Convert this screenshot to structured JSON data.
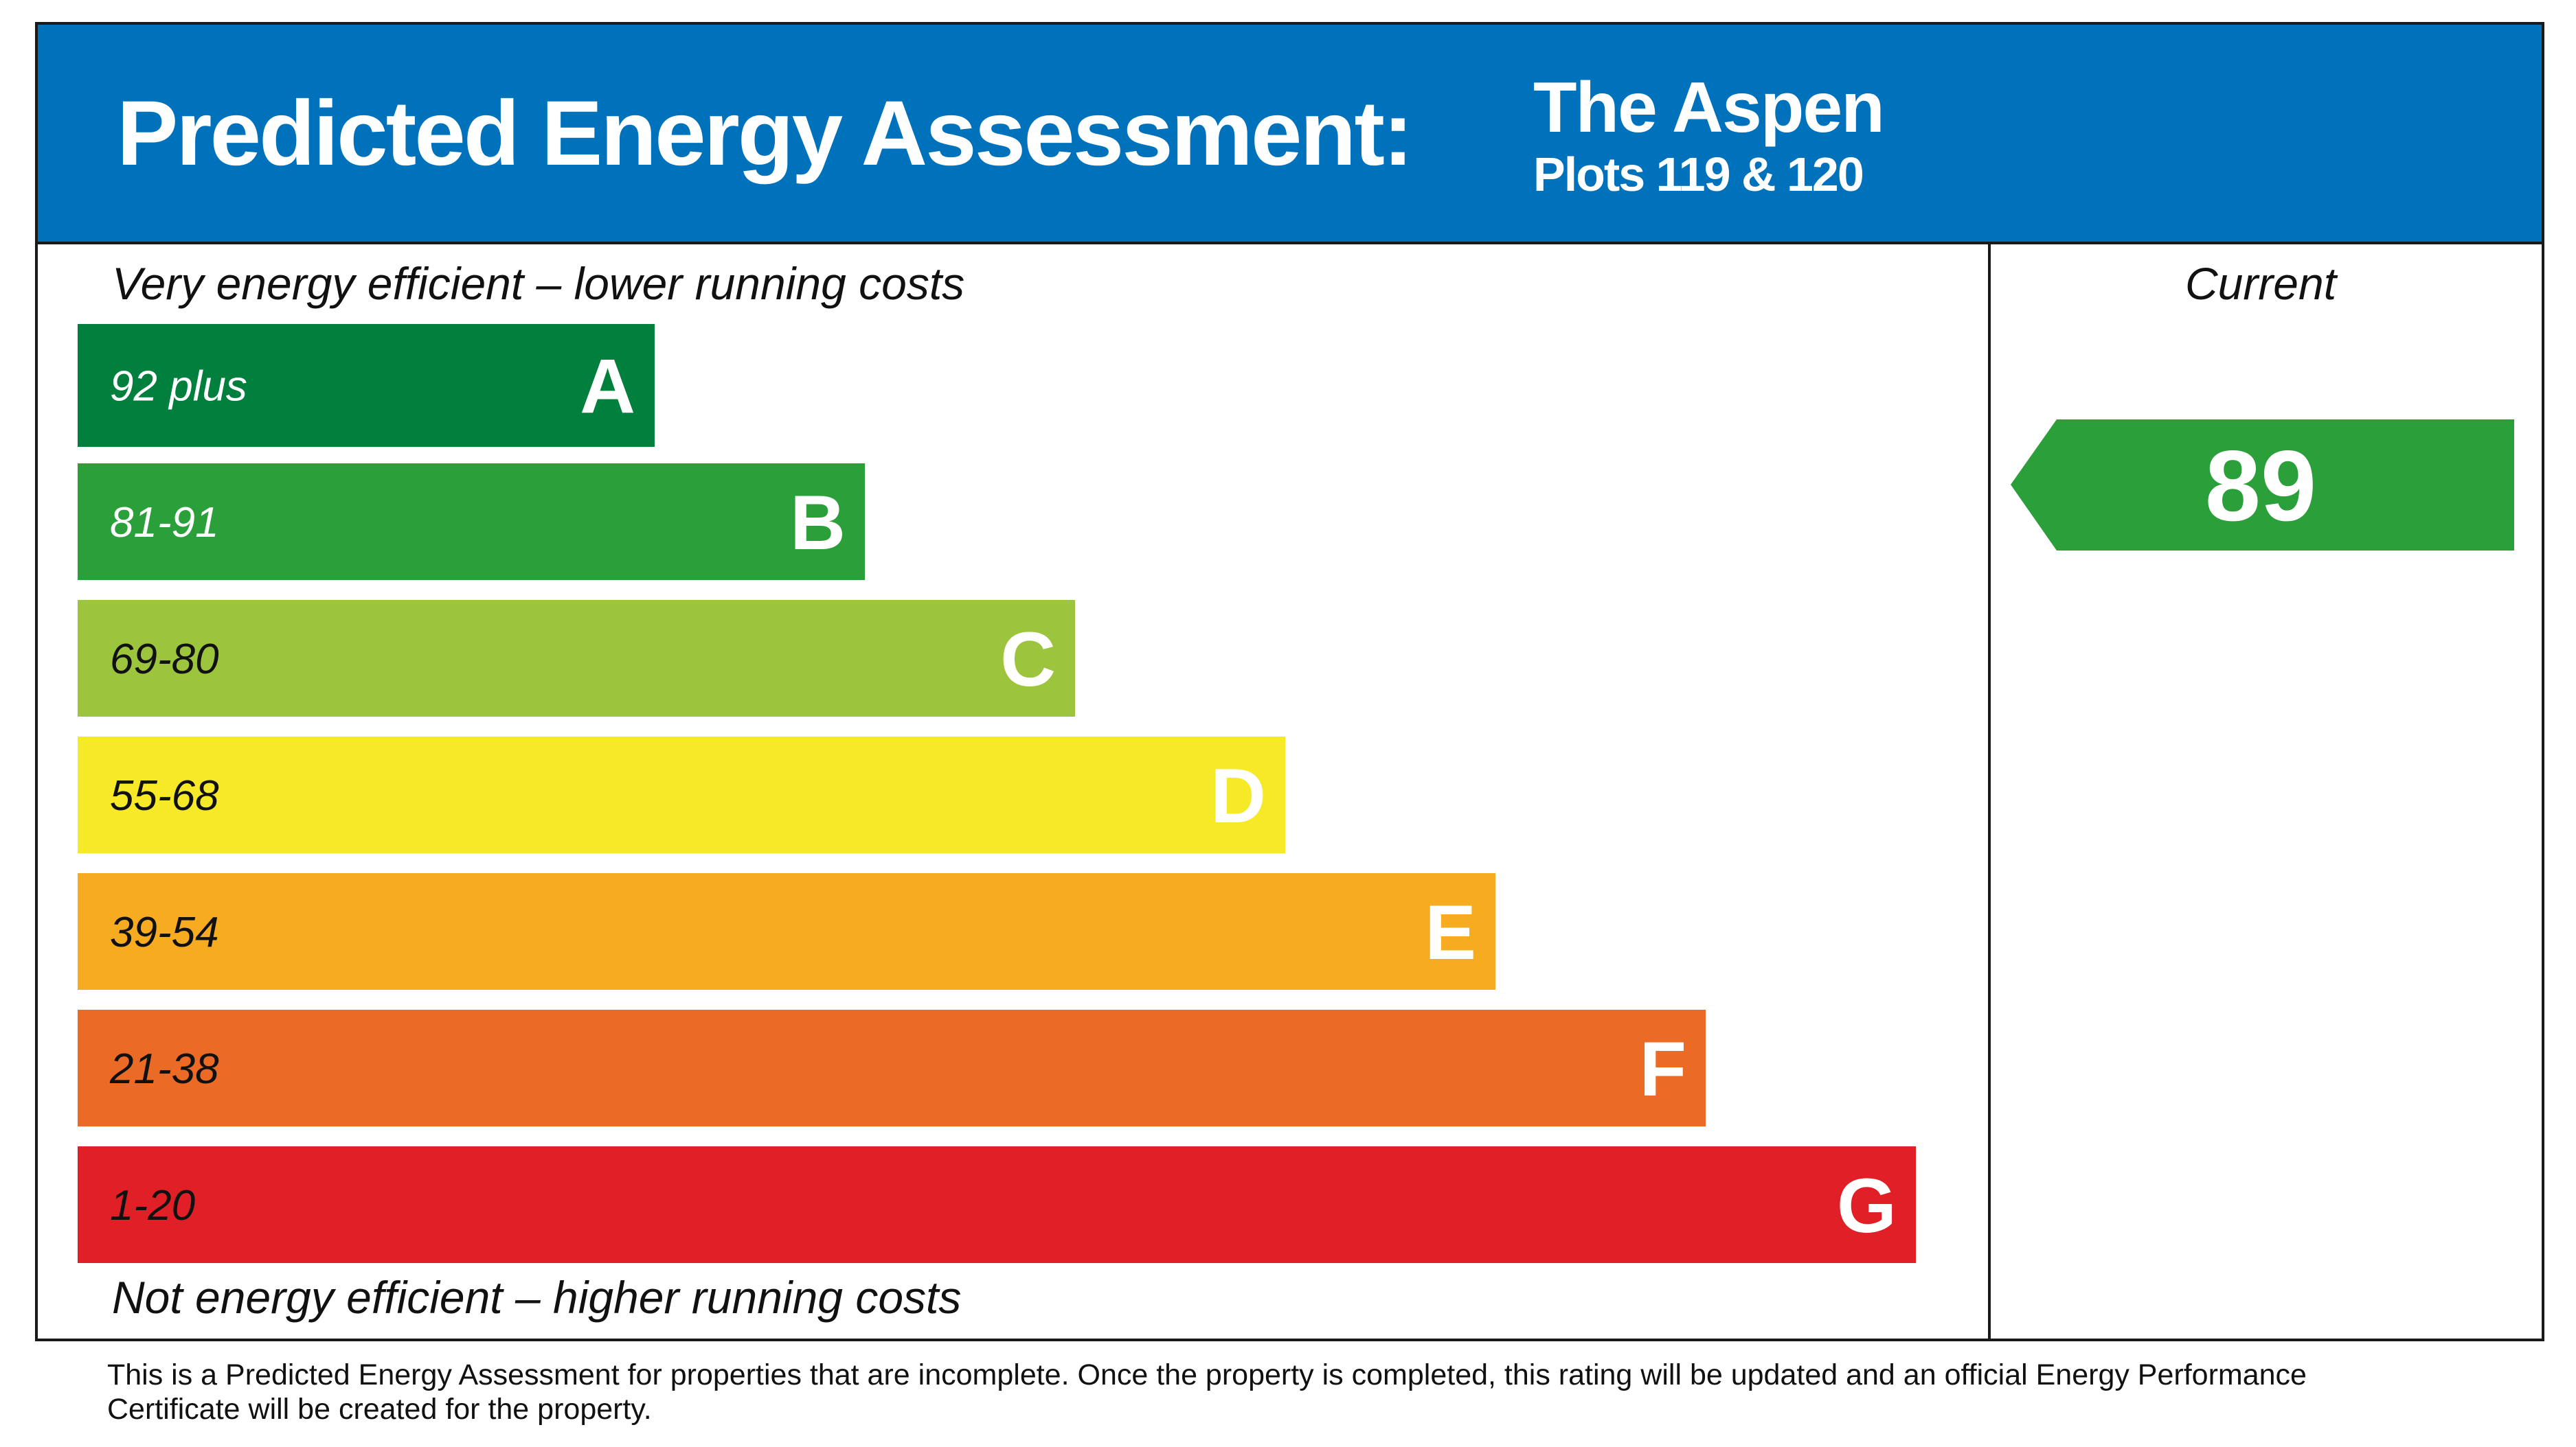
{
  "header": {
    "title": "Predicted Energy Assessment:",
    "name": "The Aspen",
    "subtitle": "Plots 119 & 120"
  },
  "scale": {
    "top_label": "Very energy efficient – lower running costs",
    "bottom_label": "Not energy efficient – higher running costs",
    "bands": [
      {
        "range": "92 plus",
        "letter": "A",
        "color": "#007f3d"
      },
      {
        "range": "81-91",
        "letter": "B",
        "color": "#2a9f3a"
      },
      {
        "range": "69-80",
        "letter": "C",
        "color": "#9dc43d"
      },
      {
        "range": "55-68",
        "letter": "D",
        "color": "#f6e928"
      },
      {
        "range": "39-54",
        "letter": "E",
        "color": "#f6ab21"
      },
      {
        "range": "21-38",
        "letter": "F",
        "color": "#ea6a26"
      },
      {
        "range": "1-20",
        "letter": "G",
        "color": "#e01f26"
      }
    ]
  },
  "current": {
    "label": "Current",
    "value": 89,
    "color": "#2a9f3a"
  },
  "footer": {
    "lines": [
      "This is a Predicted Energy Assessment for properties that are incomplete. Once the property is completed, this rating will be updated and an official Energy Performance",
      "Certificate will be created for the property."
    ]
  }
}
